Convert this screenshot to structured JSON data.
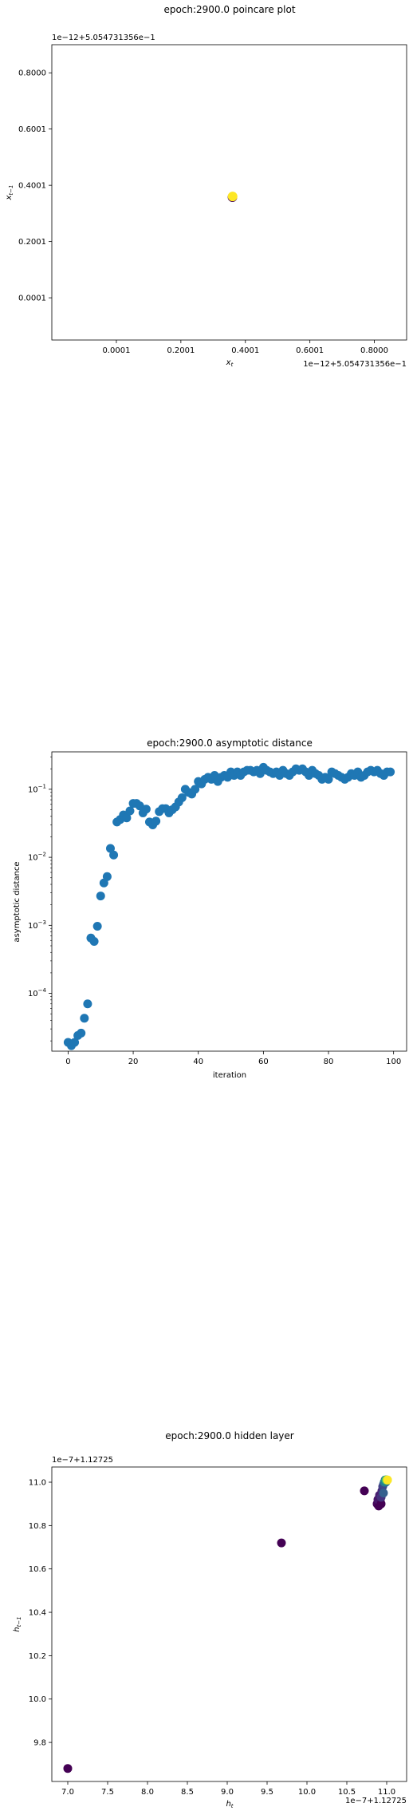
{
  "chart_data": [
    {
      "type": "scatter",
      "title": "epoch:2900.0 poincare plot",
      "xlabel": "x_t",
      "ylabel": "x_{t-1}",
      "x_offset_text": "1e−12+5.054731356e−1",
      "y_offset_text": "1e−12+5.054731356e−1",
      "xlim": [
        -0.2,
        0.9
      ],
      "ylim": [
        -0.15,
        0.9
      ],
      "x_ticks": [
        {
          "value": 0.0001,
          "label": "0.0001"
        },
        {
          "value": 0.2001,
          "label": "0.2001"
        },
        {
          "value": 0.4001,
          "label": "0.4001"
        },
        {
          "value": 0.6001,
          "label": "0.6001"
        },
        {
          "value": 0.8,
          "label": "0.8000"
        }
      ],
      "y_ticks": [
        {
          "value": 0.0001,
          "label": "0.0001"
        },
        {
          "value": 0.2001,
          "label": "0.2001"
        },
        {
          "value": 0.4001,
          "label": "0.4001"
        },
        {
          "value": 0.6001,
          "label": "0.6001"
        },
        {
          "value": 0.8,
          "label": "0.8000"
        }
      ],
      "points": [
        {
          "x": 0.36,
          "y": 0.358,
          "color": "#440154"
        },
        {
          "x": 0.3605,
          "y": 0.3605,
          "color": "#fde725"
        }
      ],
      "grid": false
    },
    {
      "type": "scatter",
      "title": "epoch:2900.0 asymptotic distance",
      "xlabel": "iteration",
      "ylabel": "asymptotic distance",
      "y_scale": "log",
      "xlim": [
        -5,
        104
      ],
      "ylim_log10": [
        -4.85,
        -0.45
      ],
      "x_ticks": [
        {
          "value": 0,
          "label": "0"
        },
        {
          "value": 20,
          "label": "20"
        },
        {
          "value": 40,
          "label": "40"
        },
        {
          "value": 60,
          "label": "60"
        },
        {
          "value": 80,
          "label": "80"
        },
        {
          "value": 100,
          "label": "100"
        }
      ],
      "y_ticks": [
        {
          "exp": -4,
          "base": "10",
          "sup": "−4"
        },
        {
          "exp": -3,
          "base": "10",
          "sup": "−3"
        },
        {
          "exp": -2,
          "base": "10",
          "sup": "−2"
        },
        {
          "exp": -1,
          "base": "10",
          "sup": "−1"
        }
      ],
      "color": "#1f77b4",
      "x": [
        0,
        1,
        2,
        3,
        4,
        5,
        6,
        7,
        8,
        9,
        10,
        11,
        12,
        13,
        14,
        15,
        16,
        17,
        18,
        19,
        20,
        21,
        22,
        23,
        24,
        25,
        26,
        27,
        28,
        29,
        30,
        31,
        32,
        33,
        34,
        35,
        36,
        37,
        38,
        39,
        40,
        41,
        42,
        43,
        44,
        45,
        46,
        47,
        48,
        49,
        50,
        51,
        52,
        53,
        54,
        55,
        56,
        57,
        58,
        59,
        60,
        61,
        62,
        63,
        64,
        65,
        66,
        67,
        68,
        69,
        70,
        71,
        72,
        73,
        74,
        75,
        76,
        77,
        78,
        79,
        80,
        81,
        82,
        83,
        84,
        85,
        86,
        87,
        88,
        89,
        90,
        91,
        92,
        93,
        94,
        95,
        96,
        97,
        98,
        99
      ],
      "y": [
        1.9e-05,
        1.7e-05,
        1.9e-05,
        2.4e-05,
        2.6e-05,
        4.3e-05,
        7e-05,
        0.00065,
        0.00058,
        0.00097,
        0.0027,
        0.0042,
        0.0052,
        0.0135,
        0.0108,
        0.033,
        0.036,
        0.042,
        0.038,
        0.048,
        0.062,
        0.062,
        0.057,
        0.045,
        0.051,
        0.033,
        0.03,
        0.034,
        0.047,
        0.052,
        0.052,
        0.045,
        0.05,
        0.055,
        0.065,
        0.075,
        0.1,
        0.09,
        0.085,
        0.1,
        0.13,
        0.12,
        0.14,
        0.15,
        0.14,
        0.16,
        0.13,
        0.15,
        0.16,
        0.15,
        0.18,
        0.16,
        0.18,
        0.16,
        0.18,
        0.19,
        0.19,
        0.18,
        0.19,
        0.17,
        0.21,
        0.19,
        0.18,
        0.17,
        0.18,
        0.16,
        0.19,
        0.17,
        0.16,
        0.18,
        0.2,
        0.19,
        0.2,
        0.18,
        0.16,
        0.19,
        0.17,
        0.16,
        0.14,
        0.15,
        0.14,
        0.18,
        0.17,
        0.16,
        0.15,
        0.14,
        0.15,
        0.17,
        0.16,
        0.18,
        0.15,
        0.16,
        0.18,
        0.19,
        0.18,
        0.19,
        0.17,
        0.16,
        0.18,
        0.18
      ],
      "grid": false
    },
    {
      "type": "scatter",
      "title": "epoch:2900.0 hidden layer",
      "xlabel": "h_t",
      "ylabel": "h_{t-1}",
      "x_offset_text": "1e−7+1.12725",
      "y_offset_text": "1e−7+1.12725",
      "xlim": [
        6.8,
        11.25
      ],
      "ylim": [
        9.62,
        11.07
      ],
      "x_ticks": [
        {
          "value": 7.0,
          "label": "7.0"
        },
        {
          "value": 7.5,
          "label": "7.5"
        },
        {
          "value": 8.0,
          "label": "8.0"
        },
        {
          "value": 8.5,
          "label": "8.5"
        },
        {
          "value": 9.0,
          "label": "9.0"
        },
        {
          "value": 9.5,
          "label": "9.5"
        },
        {
          "value": 10.0,
          "label": "10.0"
        },
        {
          "value": 10.5,
          "label": "10.5"
        },
        {
          "value": 11.0,
          "label": "11.0"
        }
      ],
      "y_ticks": [
        {
          "value": 9.8,
          "label": "9.8"
        },
        {
          "value": 10.0,
          "label": "10.0"
        },
        {
          "value": 10.2,
          "label": "10.2"
        },
        {
          "value": 10.4,
          "label": "10.4"
        },
        {
          "value": 10.6,
          "label": "10.6"
        },
        {
          "value": 10.8,
          "label": "10.8"
        },
        {
          "value": 11.0,
          "label": "11.0"
        }
      ],
      "points": [
        {
          "x": 7.0,
          "y": 9.68,
          "color": "#440154"
        },
        {
          "x": 9.68,
          "y": 10.72,
          "color": "#440154"
        },
        {
          "x": 10.72,
          "y": 10.96,
          "color": "#440154"
        },
        {
          "x": 10.88,
          "y": 10.9,
          "color": "#46085c"
        },
        {
          "x": 10.9,
          "y": 10.89,
          "color": "#440154"
        },
        {
          "x": 10.92,
          "y": 10.92,
          "color": "#471063"
        },
        {
          "x": 10.89,
          "y": 10.92,
          "color": "#481769"
        },
        {
          "x": 10.93,
          "y": 10.9,
          "color": "#440154"
        },
        {
          "x": 10.91,
          "y": 10.94,
          "color": "#481f70"
        },
        {
          "x": 10.94,
          "y": 10.96,
          "color": "#472a7a"
        },
        {
          "x": 10.93,
          "y": 10.93,
          "color": "#46327e"
        },
        {
          "x": 10.95,
          "y": 10.98,
          "color": "#433d84"
        },
        {
          "x": 10.96,
          "y": 10.99,
          "color": "#3e4989"
        },
        {
          "x": 10.97,
          "y": 11.0,
          "color": "#39558c"
        },
        {
          "x": 10.96,
          "y": 10.95,
          "color": "#35608d"
        },
        {
          "x": 10.98,
          "y": 11.01,
          "color": "#30698e"
        },
        {
          "x": 10.99,
          "y": 11.0,
          "color": "#2c728e"
        },
        {
          "x": 10.97,
          "y": 11.0,
          "color": "#277f8e"
        },
        {
          "x": 10.99,
          "y": 11.01,
          "color": "#21918c"
        },
        {
          "x": 11.0,
          "y": 11.01,
          "color": "#1fa187"
        },
        {
          "x": 10.99,
          "y": 11.01,
          "color": "#35b779"
        },
        {
          "x": 11.0,
          "y": 11.01,
          "color": "#6ece58"
        },
        {
          "x": 11.01,
          "y": 11.01,
          "color": "#b5de2b"
        },
        {
          "x": 11.01,
          "y": 11.01,
          "color": "#fde725"
        }
      ],
      "grid": false
    }
  ]
}
